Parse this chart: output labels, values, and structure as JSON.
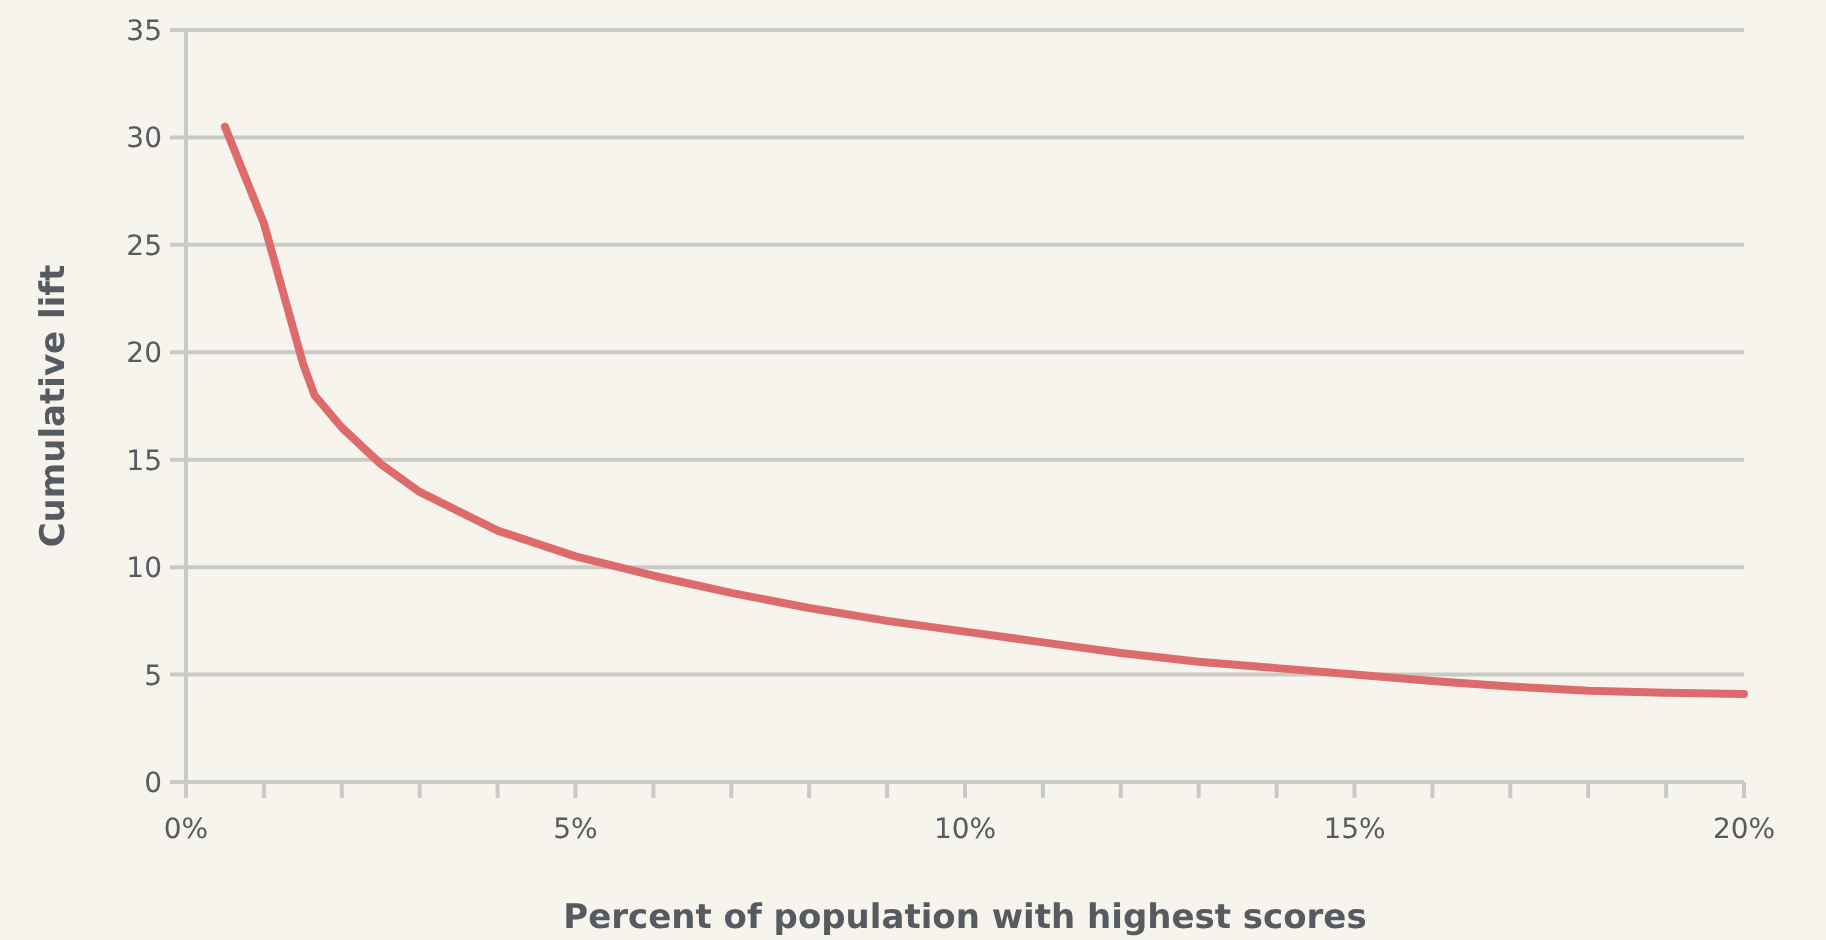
{
  "chart_data": {
    "type": "line",
    "xlabel": "Percent of population with highest scores",
    "ylabel": "Cumulative lift",
    "x": [
      0.5,
      1,
      1.5,
      1.65,
      2,
      2.5,
      3,
      4,
      5,
      6,
      7,
      8,
      9,
      10,
      11,
      12,
      13,
      14,
      15,
      16,
      17,
      18,
      19,
      20
    ],
    "series": [
      {
        "color": "#dd6b6b",
        "values": [
          30.5,
          26,
          19.5,
          18,
          16.5,
          14.8,
          13.5,
          11.7,
          10.5,
          9.6,
          8.8,
          8.1,
          7.5,
          7,
          6.5,
          6,
          5.6,
          5.3,
          5,
          4.7,
          4.45,
          4.25,
          4.15,
          4.1
        ]
      }
    ],
    "xlim": [
      0,
      20
    ],
    "xticks": [
      {
        "value": 0,
        "label": "0%"
      },
      {
        "value": 1,
        "label": null
      },
      {
        "value": 2,
        "label": null
      },
      {
        "value": 3,
        "label": null
      },
      {
        "value": 4,
        "label": null
      },
      {
        "value": 5,
        "label": "5%"
      },
      {
        "value": 6,
        "label": null
      },
      {
        "value": 7,
        "label": null
      },
      {
        "value": 8,
        "label": null
      },
      {
        "value": 9,
        "label": null
      },
      {
        "value": 10,
        "label": "10%"
      },
      {
        "value": 11,
        "label": null
      },
      {
        "value": 12,
        "label": null
      },
      {
        "value": 13,
        "label": null
      },
      {
        "value": 14,
        "label": null
      },
      {
        "value": 15,
        "label": "15%"
      },
      {
        "value": 16,
        "label": null
      },
      {
        "value": 17,
        "label": null
      },
      {
        "value": 18,
        "label": null
      },
      {
        "value": 19,
        "label": null
      },
      {
        "value": 20,
        "label": "20%"
      }
    ],
    "ylim": [
      0,
      35
    ],
    "yticks": [
      0,
      5,
      10,
      15,
      20,
      25,
      30,
      35
    ],
    "grid": "y",
    "marker": "none",
    "line_style": "solid"
  }
}
